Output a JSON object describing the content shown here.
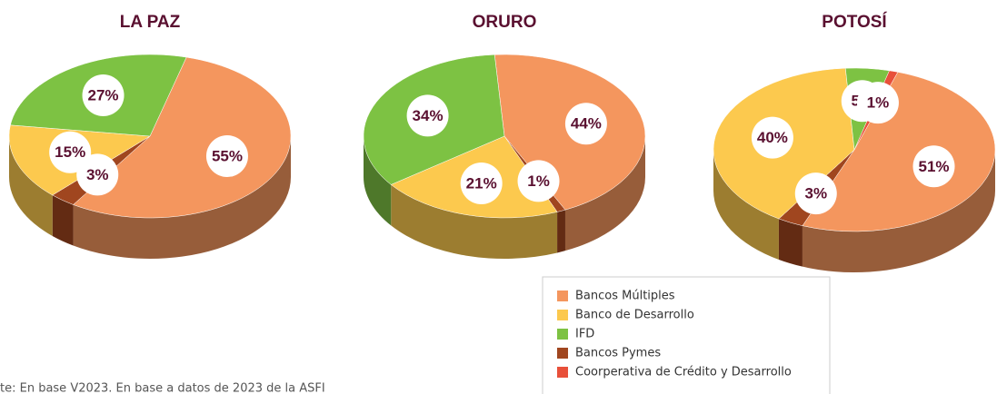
{
  "chart_data": [
    {
      "type": "pie",
      "title": "LA PAZ",
      "values": [
        55,
        15,
        27,
        3,
        null
      ],
      "value_labels": [
        "55%",
        "15%",
        "27%",
        "3%",
        null
      ]
    },
    {
      "type": "pie",
      "title": "ORURO",
      "values": [
        44,
        21,
        34,
        1,
        null
      ],
      "value_labels": [
        "44%",
        "21%",
        "34%",
        "1%",
        null
      ]
    },
    {
      "type": "pie",
      "title": "POTOSÍ",
      "values": [
        51,
        40,
        5,
        3,
        1
      ],
      "value_labels": [
        "51%",
        "40%",
        "5%",
        "3%",
        "1%"
      ]
    }
  ],
  "legend": {
    "series": [
      {
        "name": "Bancos Múltiples",
        "color": "#f4965e"
      },
      {
        "name": "Banco de Desarrollo",
        "color": "#fcc94e"
      },
      {
        "name": "IFD",
        "color": "#7dc243"
      },
      {
        "name": "Bancos Pymes",
        "color": "#a0461f"
      },
      {
        "name": "Coorperativa de Crédito y Desarrollo",
        "color": "#e8503a"
      }
    ]
  },
  "note": "te: En base V2023. En base a datos de 2023 de la ASFI"
}
